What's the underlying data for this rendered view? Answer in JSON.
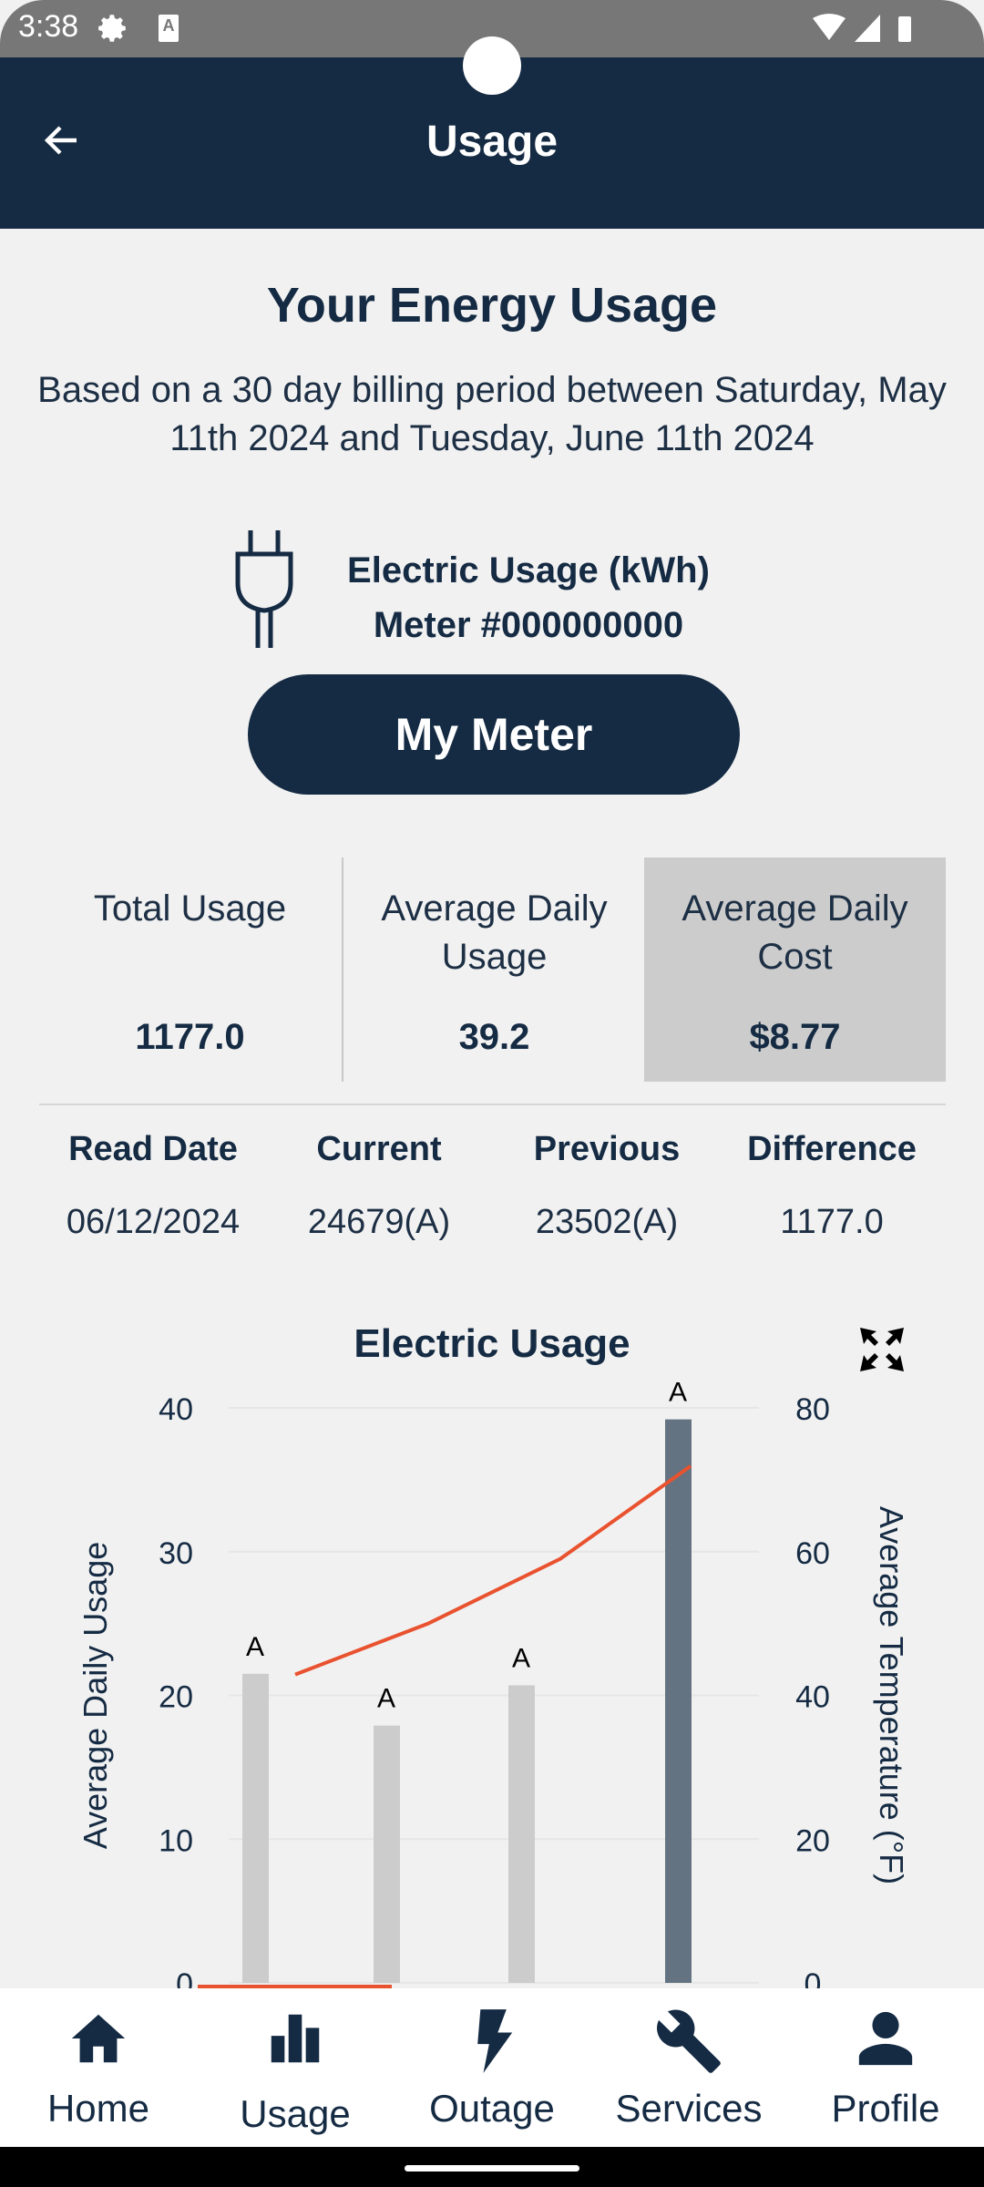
{
  "status_bar": {
    "time": "3:38",
    "icons": [
      "gear-icon",
      "a-icon",
      "wifi-icon",
      "signal-icon",
      "battery-icon"
    ]
  },
  "header": {
    "title": "Usage",
    "back_icon": "arrow-left-icon"
  },
  "summary": {
    "title": "Your Energy Usage",
    "subtitle": "Based on a 30 day billing period between Saturday, May 11th 2024 and Tuesday, June 11th 2024",
    "meter_type": "Electric Usage (kWh)",
    "meter_number": "Meter #000000000",
    "my_meter_button": "My Meter"
  },
  "stats": [
    {
      "label": "Total Usage",
      "value": "1177.0"
    },
    {
      "label": "Average Daily Usage",
      "value": "39.2"
    },
    {
      "label": "Average Daily Cost",
      "value": "$8.77",
      "selected": true
    }
  ],
  "reads": {
    "headers": [
      "Read Date",
      "Current",
      "Previous",
      "Difference"
    ],
    "rows": [
      [
        "06/12/2024",
        "24679(A)",
        "23502(A)",
        "1177.0"
      ]
    ]
  },
  "chart_data": {
    "type": "bar",
    "title": "Electric Usage",
    "ylabel": "Average Daily Usage",
    "y2label": "Average Temperature (°F)",
    "ylim": [
      0,
      40
    ],
    "y2lim": [
      0,
      80
    ],
    "yticks": [
      "0",
      "10",
      "20",
      "30",
      "40"
    ],
    "y2ticks": [
      "0",
      "20",
      "40",
      "60",
      "80"
    ],
    "grid": true,
    "series": [
      {
        "type": "bar",
        "values": [
          21.5,
          17.9,
          20.7,
          39.2
        ],
        "labels": [
          "A",
          "A",
          "A",
          "A"
        ],
        "colors": [
          "#cccccc",
          "#cccccc",
          "#cccccc",
          "#637381"
        ]
      },
      {
        "type": "line",
        "axis": "y2",
        "values": [
          42.9,
          50.0,
          59.0,
          71.9
        ],
        "color": "#e9522f"
      },
      {
        "type": "line",
        "axis": "y2",
        "values": [
          0,
          0
        ],
        "color": "#e9522f"
      }
    ]
  },
  "nav": [
    {
      "label": "Home",
      "icon": "home-icon"
    },
    {
      "label": "Usage",
      "icon": "bar-chart-icon",
      "active": true
    },
    {
      "label": "Outage",
      "icon": "lightning-icon"
    },
    {
      "label": "Services",
      "icon": "wrench-icon"
    },
    {
      "label": "Profile",
      "icon": "person-icon"
    }
  ]
}
